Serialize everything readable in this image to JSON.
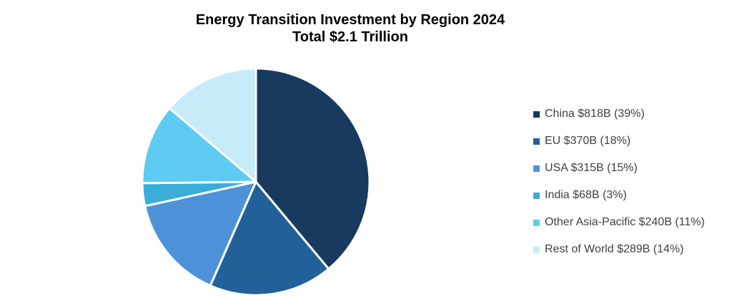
{
  "chart_data": {
    "type": "pie",
    "title": "Energy Transition Investment by Region 2024",
    "subtitle": "Total $2.1 Trillion",
    "categories": [
      "China",
      "EU",
      "USA",
      "India",
      "Other Asia-Pacific",
      "Rest of World"
    ],
    "values": [
      818,
      370,
      315,
      68,
      240,
      289
    ],
    "unit": "$B",
    "legend_labels": [
      "China $818B (39%)",
      "EU $370B (18%)",
      "USA $315B (15%)",
      "India $68B (3%)",
      "Other Asia-Pacific $240B (11%)",
      "Rest of World $289B (14%)"
    ],
    "colors": [
      "#173a5e",
      "#22609a",
      "#4d92d9",
      "#3aadd9",
      "#5ecbf2",
      "#c8ebfa"
    ],
    "legend_position": "right"
  }
}
